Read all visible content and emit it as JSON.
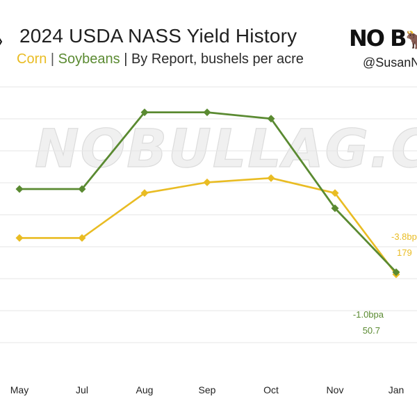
{
  "header": {
    "title": "2024 USDA NASS Yield History",
    "subtitle_corn": "Corn",
    "subtitle_sep1": " | ",
    "subtitle_soy": "Soybeans",
    "subtitle_rest": " | By Report, bushels per acre",
    "logo_text": "NO B",
    "handle": "@SusanN"
  },
  "watermark": "NOBULLAG.COM",
  "colors": {
    "corn": "#E9BC23",
    "soybeans": "#5A8A31",
    "grid": "#e6e6e6"
  },
  "chart_data": {
    "type": "line",
    "title": "2024 USDA NASS Yield History",
    "subtitle": "Corn | Soybeans | By Report, bushels per acre",
    "categories": [
      "May",
      "Jul",
      "Aug",
      "Sep",
      "Oct",
      "Nov",
      "Jan"
    ],
    "grid": true,
    "series": [
      {
        "name": "Corn",
        "values": [
          181.0,
          181.0,
          183.1,
          183.6,
          183.8,
          183.1,
          179.3
        ],
        "end_labels": [
          "-3.8bp",
          "179"
        ]
      },
      {
        "name": "Soybeans",
        "values": [
          52.0,
          52.0,
          53.2,
          53.2,
          53.1,
          51.7,
          50.7
        ],
        "end_labels": [
          "-1.0bpa",
          "50.7"
        ]
      }
    ]
  }
}
